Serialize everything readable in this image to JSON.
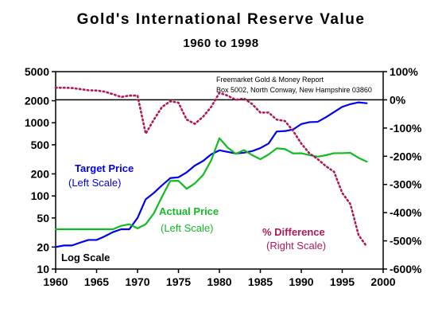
{
  "chart_data": {
    "type": "line",
    "title": "Gold's International Reserve Value",
    "subtitle": "1960 to 1998",
    "x": [
      1960,
      1961,
      1962,
      1963,
      1964,
      1965,
      1966,
      1967,
      1968,
      1969,
      1970,
      1971,
      1972,
      1973,
      1974,
      1975,
      1976,
      1977,
      1978,
      1979,
      1980,
      1981,
      1982,
      1983,
      1984,
      1985,
      1986,
      1987,
      1988,
      1989,
      1990,
      1991,
      1992,
      1993,
      1994,
      1995,
      1996,
      1997,
      1998
    ],
    "xlim": [
      1960,
      2000
    ],
    "x_ticks": [
      "1960",
      "1965",
      "1970",
      "1975",
      "1980",
      "1985",
      "1990",
      "1995",
      "2000"
    ],
    "left_axis": {
      "scale": "log",
      "ylim": [
        10,
        5000
      ],
      "ticks": [
        "5000",
        "2000",
        "1000",
        "500",
        "200",
        "100",
        "50",
        "20",
        "10"
      ]
    },
    "right_axis": {
      "scale": "linear",
      "ylim": [
        -600,
        100
      ],
      "ticks": [
        "100%",
        "0%",
        "-100%",
        "-200%",
        "-300%",
        "-400%",
        "-500%",
        "-600%"
      ]
    },
    "series": [
      {
        "name": "Target Price",
        "axis": "left",
        "color": "#0000ee",
        "style": "solid",
        "values": [
          20,
          21,
          21,
          23,
          25,
          25,
          28,
          32,
          35,
          35,
          50,
          90,
          110,
          140,
          175,
          180,
          210,
          260,
          300,
          370,
          420,
          400,
          380,
          390,
          410,
          450,
          520,
          760,
          770,
          810,
          960,
          1020,
          1030,
          1190,
          1400,
          1650,
          1800,
          1900,
          1850
        ]
      },
      {
        "name": "Actual Price",
        "axis": "left",
        "color": "#11bb22",
        "style": "solid",
        "values": [
          35,
          35,
          35,
          35,
          35,
          35,
          35,
          35,
          39,
          41,
          36,
          41,
          58,
          98,
          160,
          161,
          125,
          148,
          193,
          307,
          615,
          460,
          376,
          424,
          361,
          317,
          368,
          447,
          437,
          381,
          383,
          362,
          344,
          360,
          384,
          384,
          388,
          331,
          294
        ]
      },
      {
        "name": "% Difference",
        "axis": "right",
        "color": "#b0185a",
        "style": "dotted",
        "values": [
          43,
          43,
          42,
          38,
          34,
          33,
          29,
          20,
          10,
          15,
          15,
          -120,
          -70,
          -25,
          -5,
          -10,
          -70,
          -85,
          -60,
          -25,
          25,
          15,
          0,
          5,
          -15,
          -45,
          -45,
          -70,
          -75,
          -110,
          -155,
          -190,
          -210,
          -235,
          -255,
          -330,
          -370,
          -480,
          -520
        ]
      }
    ],
    "legend": [
      {
        "line1": "Target Price",
        "line2": "(Left Scale)",
        "color": "#0000ee"
      },
      {
        "line1": "Actual Price",
        "line2": "(Left Scale)",
        "color": "#11bb22"
      },
      {
        "line1": "% Difference",
        "line2": "(Right Scale)",
        "color": "#b0185a"
      }
    ],
    "annotations": {
      "source_line1": "Freemarket Gold & Money Report",
      "source_line2": "Box 5002, North Conway, New Hampshire 03860",
      "scale_note": "Log Scale"
    }
  }
}
